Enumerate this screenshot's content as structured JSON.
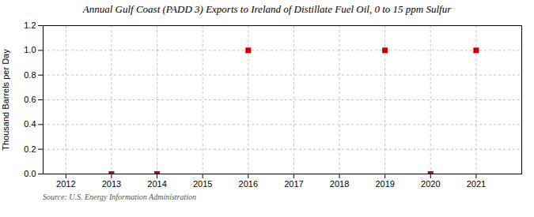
{
  "chart_data": {
    "type": "scatter",
    "title": "Annual Gulf Coast (PADD 3) Exports to Ireland of Distillate Fuel Oil, 0 to 15 ppm Sulfur",
    "ylabel": "Thousand Barrels per Day",
    "source": "Source: U.S. Energy Information Administration",
    "x": [
      2013,
      2014,
      2016,
      2019,
      2020,
      2021
    ],
    "values": [
      0.0,
      0.0,
      1.0,
      1.0,
      0.0,
      1.0
    ],
    "color": "#cc0000",
    "marker": "square",
    "xlim": [
      2011.5,
      2022.0
    ],
    "xticks": [
      2012,
      2013,
      2014,
      2015,
      2016,
      2017,
      2018,
      2019,
      2020,
      2021
    ],
    "ylim": [
      0.0,
      1.2
    ],
    "yticks": [
      {
        "value": 0.0,
        "label": "0.0"
      },
      0.2,
      0.4,
      0.6,
      0.8,
      {
        "value": 1.0,
        "label": "1.0"
      },
      1.2
    ],
    "grid": true
  }
}
